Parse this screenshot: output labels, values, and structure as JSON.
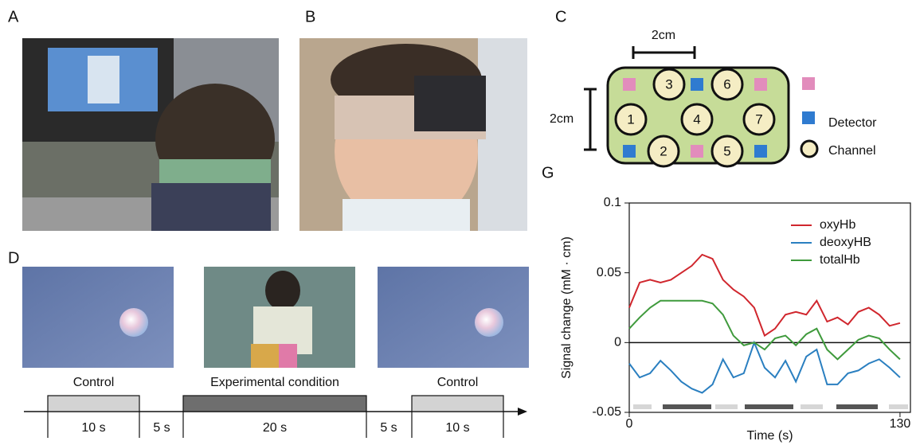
{
  "panels": {
    "a": "A",
    "b": "B",
    "c": "C",
    "d": "D",
    "g": "G"
  },
  "probe": {
    "scale_x": "2cm",
    "scale_y": "2cm",
    "channels": [
      1,
      2,
      3,
      4,
      5,
      6,
      7
    ],
    "legend": {
      "detector": "Detector",
      "channel": "Channel"
    }
  },
  "timeline": {
    "blocks": [
      {
        "label": "Control",
        "duration": "10 s"
      },
      {
        "label": "Experimental condition",
        "duration": "20 s"
      },
      {
        "label": "Control",
        "duration": "10 s"
      }
    ],
    "gaps": [
      "5 s",
      "5 s"
    ]
  },
  "chart_data": {
    "type": "line",
    "xlabel": "Time (s)",
    "ylabel": "Signal change (mM · cm)",
    "x": [
      0,
      5,
      10,
      15,
      20,
      25,
      30,
      35,
      40,
      45,
      50,
      55,
      60,
      65,
      70,
      75,
      80,
      85,
      90,
      95,
      100,
      105,
      110,
      115,
      120,
      125,
      130
    ],
    "series": [
      {
        "name": "oxyHb",
        "color": "#d0262d",
        "values": [
          0.025,
          0.043,
          0.045,
          0.043,
          0.045,
          0.05,
          0.055,
          0.063,
          0.06,
          0.045,
          0.038,
          0.033,
          0.025,
          0.005,
          0.01,
          0.02,
          0.022,
          0.02,
          0.03,
          0.015,
          0.018,
          0.013,
          0.022,
          0.025,
          0.02,
          0.012,
          0.014
        ]
      },
      {
        "name": "deoxyHB",
        "color": "#2a7fc0",
        "values": [
          -0.015,
          -0.025,
          -0.022,
          -0.013,
          -0.02,
          -0.028,
          -0.033,
          -0.036,
          -0.03,
          -0.012,
          -0.025,
          -0.022,
          0,
          -0.018,
          -0.025,
          -0.013,
          -0.028,
          -0.01,
          -0.005,
          -0.03,
          -0.03,
          -0.022,
          -0.02,
          -0.015,
          -0.012,
          -0.018,
          -0.025
        ]
      },
      {
        "name": "totalHb",
        "color": "#3f9a3c",
        "values": [
          0.01,
          0.018,
          0.025,
          0.03,
          0.03,
          0.03,
          0.03,
          0.03,
          0.028,
          0.02,
          0.005,
          -0.002,
          0,
          -0.005,
          0.003,
          0.005,
          -0.002,
          0.006,
          0.01,
          -0.005,
          -0.012,
          -0.005,
          0.002,
          0.005,
          0.003,
          -0.005,
          -0.012
        ]
      }
    ],
    "xlim": [
      0,
      135
    ],
    "xticks": [
      0,
      130
    ],
    "ylim": [
      -0.05,
      0.1
    ],
    "yticks": [
      -0.05,
      0,
      0.05,
      0.1
    ],
    "legend": "upper right"
  }
}
